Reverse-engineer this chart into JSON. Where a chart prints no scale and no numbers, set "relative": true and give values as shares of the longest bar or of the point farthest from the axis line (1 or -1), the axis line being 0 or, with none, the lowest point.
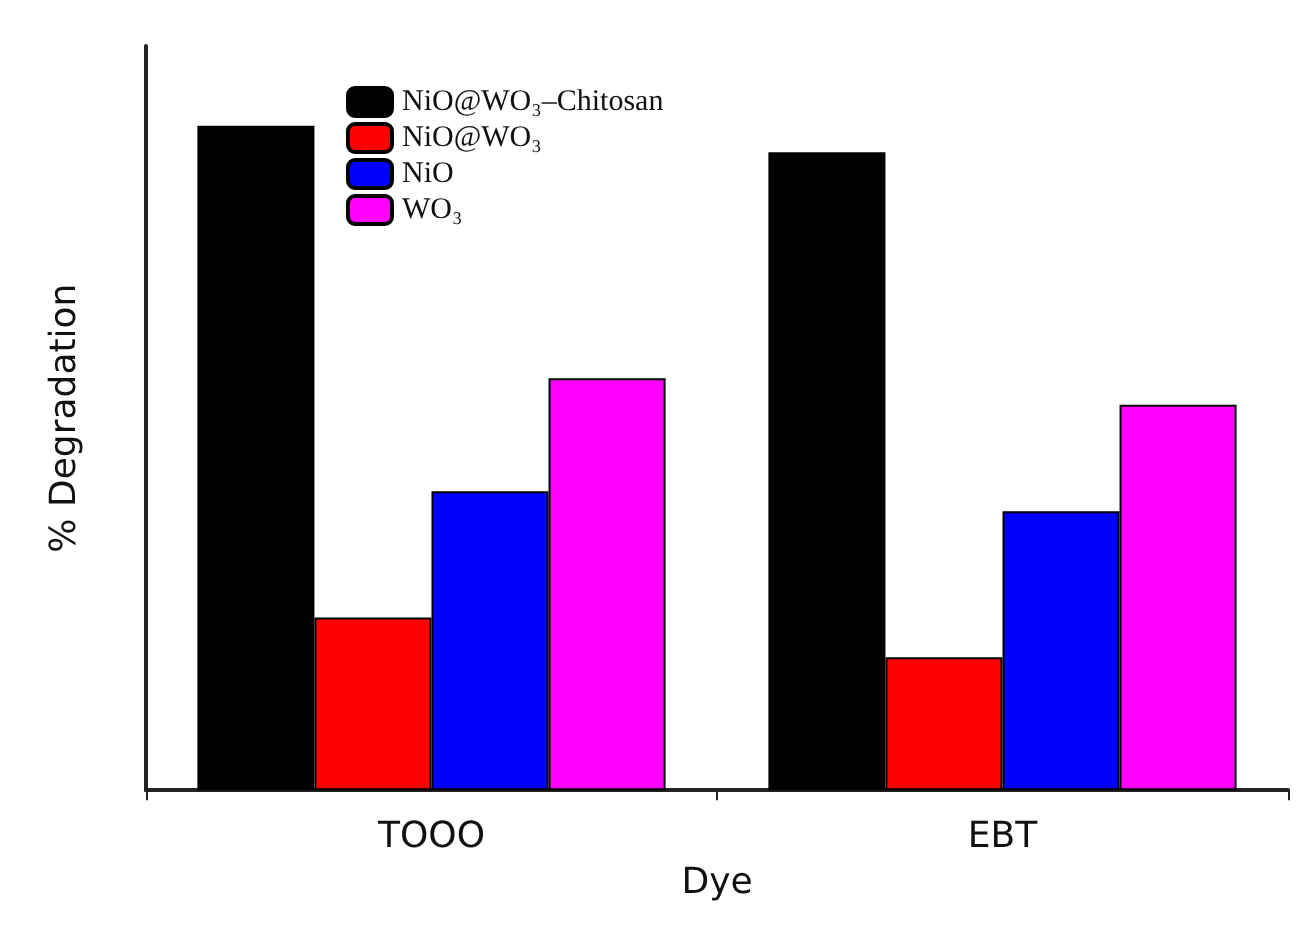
{
  "chart_data": {
    "type": "bar",
    "relative": true,
    "xlabel": "Dye",
    "ylabel": "% Degradation",
    "categories": [
      "TOOO",
      "EBT"
    ],
    "legend": "top left",
    "grid": false,
    "series": [
      {
        "name": "NiO@WO₃–Chitosan",
        "color": "#000000",
        "values": [
          1,
          0.96
        ]
      },
      {
        "name": "NiO@WO₃",
        "color": "#ff0000",
        "values": [
          0.26,
          0.2
        ]
      },
      {
        "name": "NiO",
        "color": "#0000ff",
        "values": [
          0.45,
          0.42
        ]
      },
      {
        "name": "WO₃",
        "color": "#ff00ff",
        "values": [
          0.62,
          0.58
        ]
      }
    ]
  }
}
